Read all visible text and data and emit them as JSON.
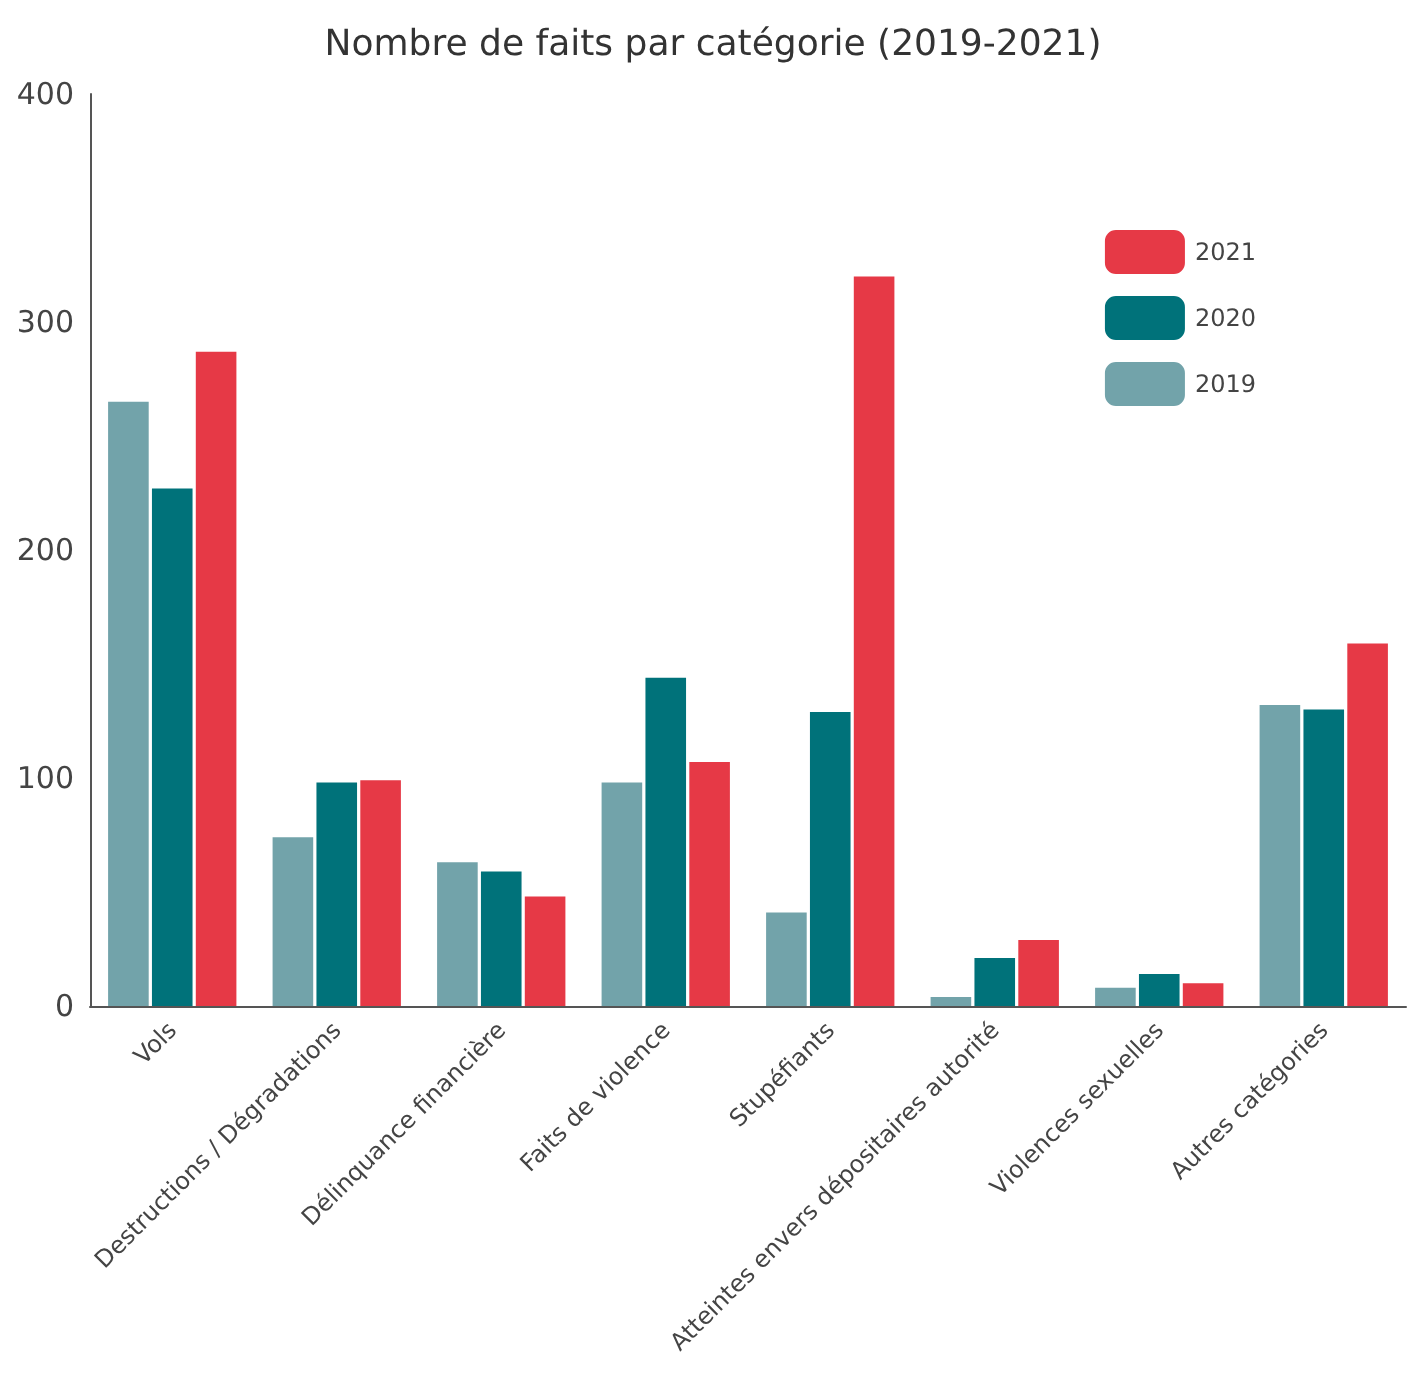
{
  "chart_data": {
    "type": "bar",
    "title": "Nombre de faits par catégorie (2019-2021)",
    "categories": [
      "Vols",
      "Destructions / Dégradations",
      "Délinquance financière",
      "Faits de violence",
      "Stupéfiants",
      "Atteintes envers dépositaires autorité",
      "Violences sexuelles",
      "Autres catégories"
    ],
    "series": [
      {
        "name": "2019",
        "color": "#72a3aa",
        "values": [
          265,
          74,
          63,
          98,
          41,
          4,
          8,
          132
        ]
      },
      {
        "name": "2020",
        "color": "#00727a",
        "values": [
          227,
          98,
          59,
          144,
          129,
          21,
          14,
          130
        ]
      },
      {
        "name": "2021",
        "color": "#e63946",
        "values": [
          287,
          99,
          48,
          107,
          320,
          29,
          10,
          159
        ]
      }
    ],
    "ylim": [
      0,
      400
    ],
    "yticks": [
      0,
      100,
      200,
      300,
      400
    ],
    "grid": false,
    "legend": "top right"
  }
}
